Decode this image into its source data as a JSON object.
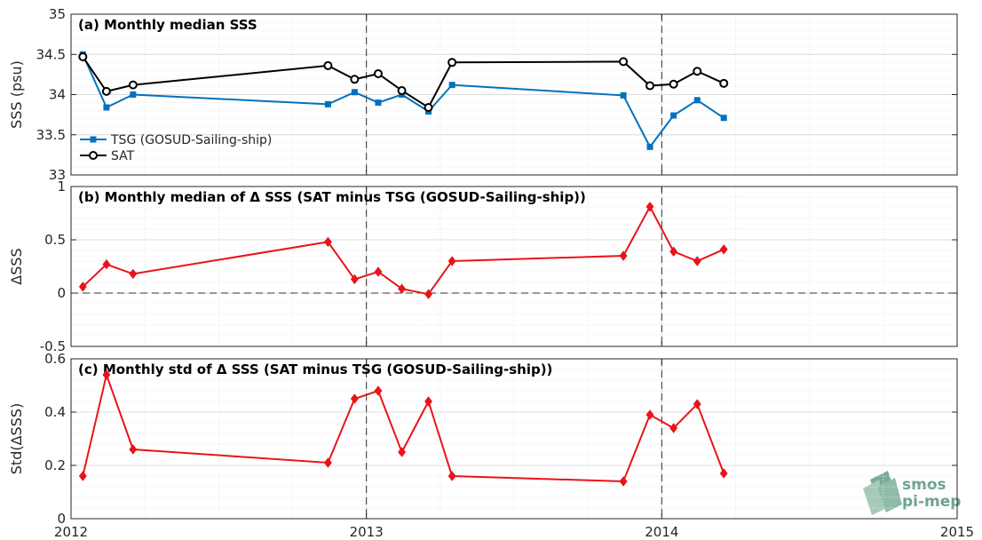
{
  "chart_data": [
    {
      "type": "line",
      "title": "(a) Monthly median SSS",
      "ylabel": "SSS (psu)",
      "xlim": [
        2012,
        2015
      ],
      "ylim": [
        33,
        35
      ],
      "yticks": [
        "33",
        "33.5",
        "34",
        "34.5",
        "35"
      ],
      "grid": true,
      "legend_position": "left",
      "x": [
        2012.04,
        2012.12,
        2012.21,
        2012.87,
        2012.96,
        2013.04,
        2013.12,
        2013.21,
        2013.29,
        2013.87,
        2013.96,
        2014.04,
        2014.12,
        2014.21
      ],
      "series": [
        {
          "name": "TSG (GOSUD-Sailing-ship)",
          "color": "#0072bd",
          "marker": "square",
          "values": [
            34.5,
            33.84,
            34.0,
            33.88,
            34.03,
            33.9,
            34.0,
            33.79,
            34.12,
            33.99,
            33.35,
            33.74,
            33.93,
            33.71
          ]
        },
        {
          "name": "SAT",
          "color": "#000000",
          "marker": "circle",
          "values": [
            34.47,
            34.04,
            34.12,
            34.36,
            34.19,
            34.26,
            34.05,
            33.84,
            34.4,
            34.41,
            34.11,
            34.13,
            34.29,
            34.14
          ]
        }
      ],
      "vlines": [
        2013,
        2014
      ]
    },
    {
      "type": "line",
      "title": "(b) Monthly median of Δ SSS (SAT minus TSG (GOSUD-Sailing-ship))",
      "ylabel": "ΔSSS",
      "xlim": [
        2012,
        2015
      ],
      "ylim": [
        -0.5,
        1
      ],
      "yticks": [
        "-0.5",
        "0",
        "0.5",
        "1"
      ],
      "grid": true,
      "hline": 0,
      "x": [
        2012.04,
        2012.12,
        2012.21,
        2012.87,
        2012.96,
        2013.04,
        2013.12,
        2013.21,
        2013.29,
        2013.87,
        2013.96,
        2014.04,
        2014.12,
        2014.21
      ],
      "series": [
        {
          "color": "#e8141a",
          "marker": "diamond",
          "values": [
            0.06,
            0.27,
            0.18,
            0.48,
            0.13,
            0.2,
            0.04,
            -0.01,
            0.3,
            0.35,
            0.81,
            0.39,
            0.3,
            0.41
          ]
        }
      ],
      "vlines": [
        2013,
        2014
      ]
    },
    {
      "type": "line",
      "title": "(c) Monthly std of Δ SSS (SAT minus TSG (GOSUD-Sailing-ship))",
      "ylabel": "Std(ΔSSS)",
      "xlim": [
        2012,
        2015
      ],
      "ylim": [
        0,
        0.6
      ],
      "yticks": [
        "0",
        "0.2",
        "0.4",
        "0.6"
      ],
      "xticks": [
        "2012",
        "2013",
        "2014",
        "2015"
      ],
      "grid": true,
      "x": [
        2012.04,
        2012.12,
        2012.21,
        2012.87,
        2012.96,
        2013.04,
        2013.12,
        2013.21,
        2013.29,
        2013.87,
        2013.96,
        2014.04,
        2014.12,
        2014.21
      ],
      "series": [
        {
          "color": "#e8141a",
          "marker": "diamond",
          "values": [
            0.16,
            0.54,
            0.26,
            0.21,
            0.45,
            0.48,
            0.25,
            0.44,
            0.16,
            0.14,
            0.39,
            0.34,
            0.43,
            0.17
          ]
        }
      ],
      "vlines": [
        2013,
        2014
      ]
    }
  ],
  "logo": {
    "line1": "smos",
    "line2": "pi-mep"
  }
}
